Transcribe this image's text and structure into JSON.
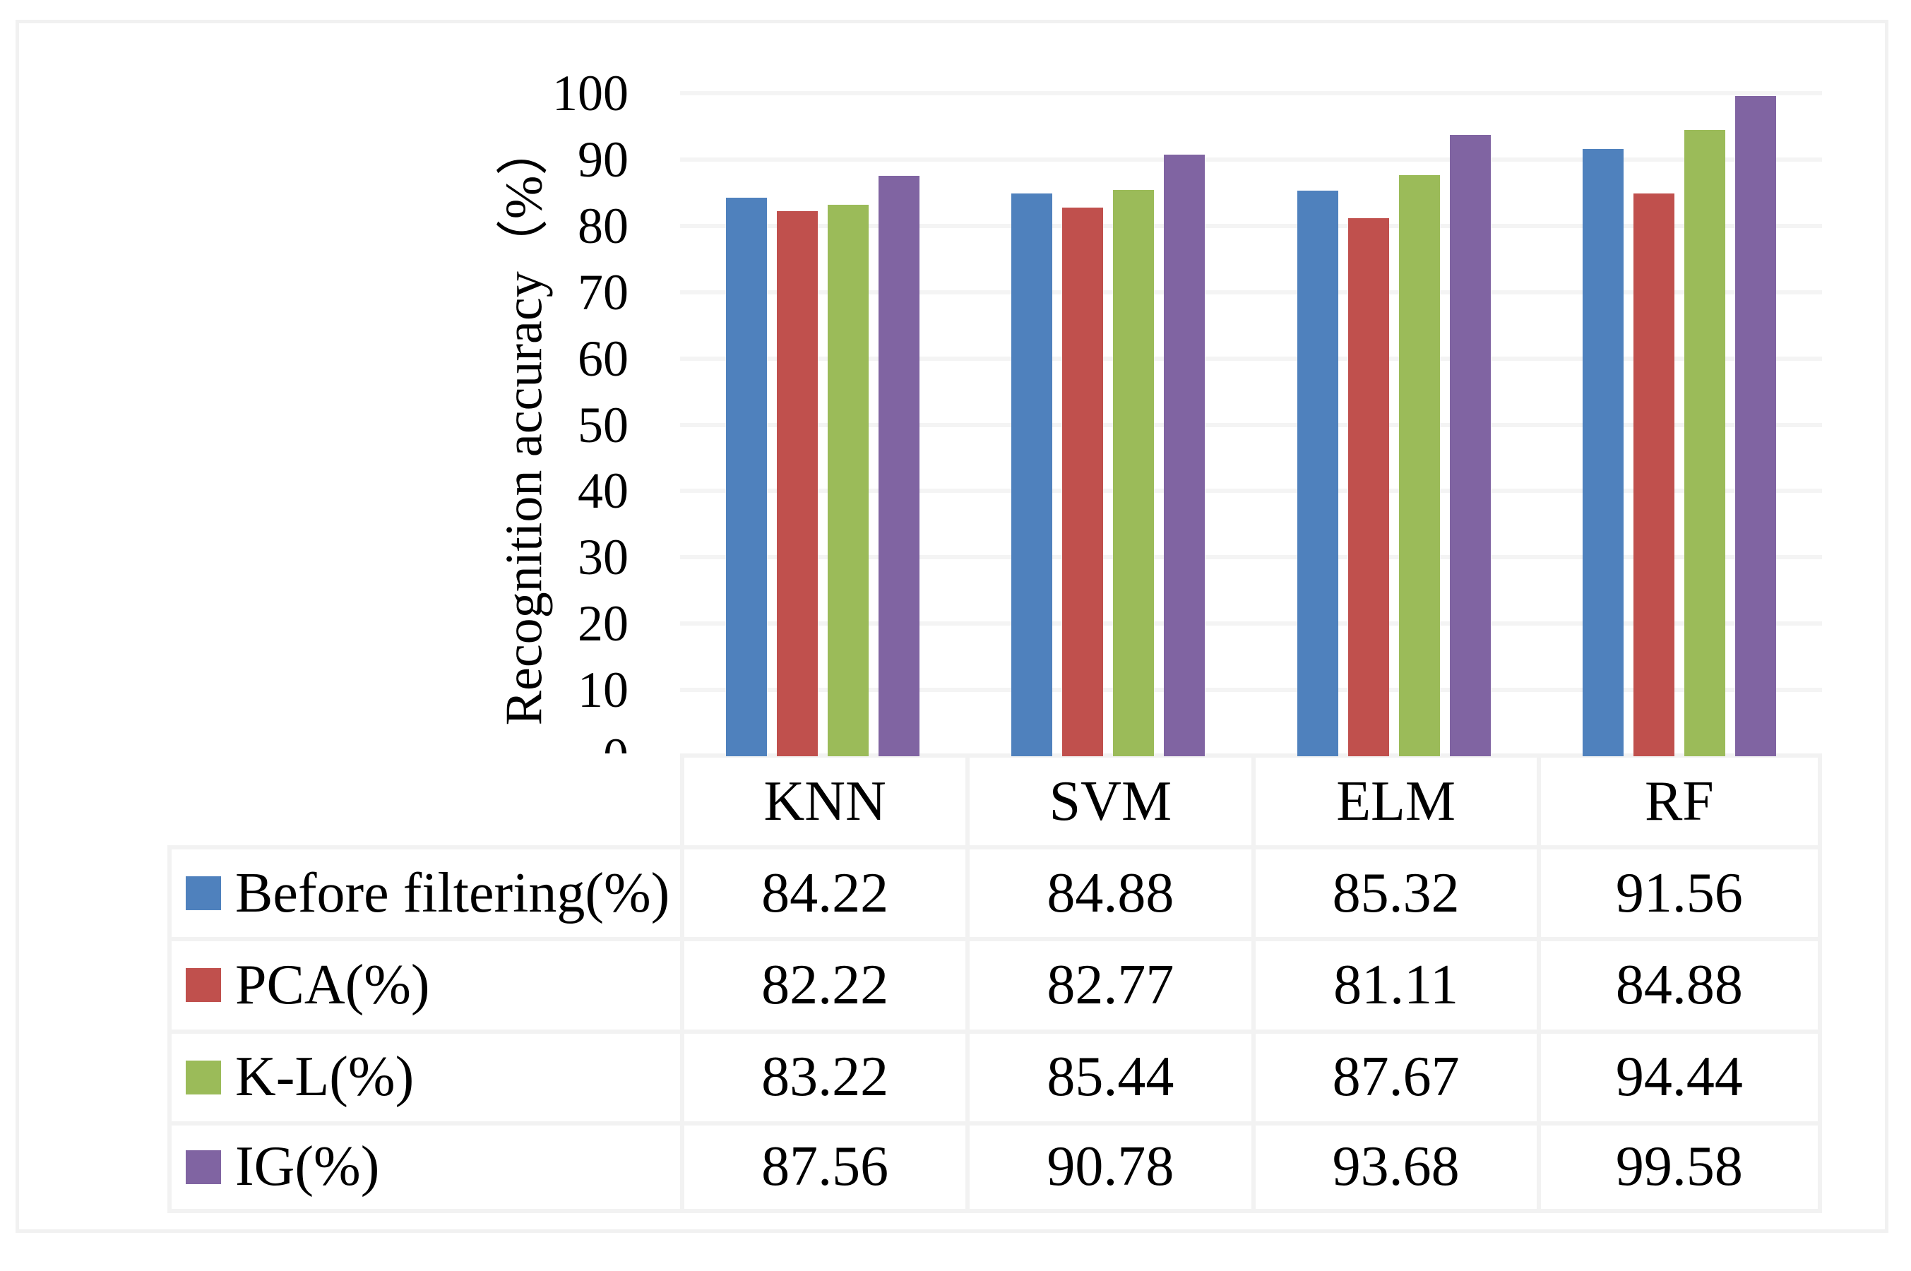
{
  "chart_data": {
    "type": "bar",
    "title": "",
    "categories": [
      "KNN",
      "SVM",
      "ELM",
      "RF"
    ],
    "series": [
      {
        "name": "Before filtering(%)",
        "color": "#4F81BD",
        "values": [
          84.22,
          84.88,
          85.32,
          91.56
        ]
      },
      {
        "name": "PCA(%)",
        "color": "#C0504D",
        "values": [
          82.22,
          82.77,
          81.11,
          84.88
        ]
      },
      {
        "name": "K-L(%)",
        "color": "#9BBB59",
        "values": [
          83.22,
          85.44,
          87.67,
          94.44
        ]
      },
      {
        "name": "IG(%)",
        "color": "#8064A2",
        "values": [
          87.56,
          90.78,
          93.68,
          99.58
        ]
      }
    ],
    "xlabel": "",
    "ylabel": "Recognition accuracy（%）",
    "ylim": [
      0,
      100
    ],
    "ytick_step": 10,
    "yticks": [
      0,
      10,
      20,
      30,
      40,
      50,
      60,
      70,
      80,
      90,
      100
    ],
    "grid": true,
    "gridline_color": "#f4f4f4",
    "legend_position": "table-rows-left-of-values",
    "value_format_decimals": 2
  }
}
